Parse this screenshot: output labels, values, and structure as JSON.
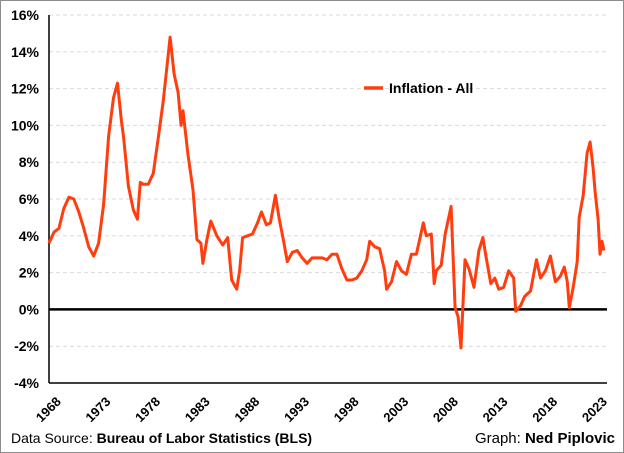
{
  "chart_data": {
    "type": "line",
    "title": "",
    "xlabel": "",
    "ylabel": "",
    "xlim": [
      1968,
      2024.2
    ],
    "ylim": [
      -4,
      16
    ],
    "yticks": [
      -4,
      -2,
      0,
      2,
      4,
      6,
      8,
      10,
      12,
      14,
      16
    ],
    "ytick_labels": [
      "-4%",
      "-2%",
      "0%",
      "2%",
      "4%",
      "6%",
      "8%",
      "10%",
      "12%",
      "14%",
      "16%"
    ],
    "xticks": [
      1968,
      1973,
      1978,
      1983,
      1988,
      1993,
      1998,
      2003,
      2008,
      2013,
      2018,
      2023
    ],
    "xtick_labels": [
      "1968",
      "1973",
      "1978",
      "1983",
      "1988",
      "1993",
      "1998",
      "2003",
      "2008",
      "2013",
      "2018",
      "2023"
    ],
    "grid": true,
    "legend": {
      "placement": "top-center",
      "entries": [
        "Inflation - All"
      ]
    },
    "series": [
      {
        "name": "Inflation - All",
        "color": "#ff3d0f",
        "x": [
          1968.0,
          1968.5,
          1969.0,
          1969.5,
          1970.0,
          1970.5,
          1971.0,
          1971.5,
          1972.0,
          1972.5,
          1973.0,
          1973.5,
          1974.0,
          1974.5,
          1974.9,
          1975.3,
          1975.5,
          1976.0,
          1976.5,
          1976.9,
          1977.2,
          1977.5,
          1978.0,
          1978.5,
          1979.0,
          1979.5,
          1980.2,
          1980.6,
          1981.0,
          1981.3,
          1981.5,
          1982.0,
          1982.5,
          1982.9,
          1983.3,
          1983.5,
          1983.9,
          1984.3,
          1984.9,
          1985.5,
          1986.0,
          1986.4,
          1986.9,
          1987.2,
          1987.5,
          1988.0,
          1988.5,
          1989.0,
          1989.4,
          1989.9,
          1990.3,
          1990.8,
          1991.2,
          1991.6,
          1992.0,
          1992.5,
          1993.0,
          1993.5,
          1994.0,
          1994.5,
          1995.0,
          1995.5,
          1996.0,
          1996.5,
          1997.0,
          1997.5,
          1998.0,
          1998.5,
          1999.0,
          1999.5,
          2000.0,
          2000.3,
          2000.8,
          2001.3,
          2001.8,
          2002.0,
          2002.5,
          2003.0,
          2003.5,
          2004.0,
          2004.5,
          2005.0,
          2005.7,
          2006.0,
          2006.5,
          2006.8,
          2007.0,
          2007.5,
          2007.9,
          2008.5,
          2008.9,
          2009.2,
          2009.5,
          2009.9,
          2010.3,
          2010.8,
          2011.3,
          2011.7,
          2012.0,
          2012.5,
          2012.9,
          2013.3,
          2013.8,
          2014.3,
          2014.8,
          2015.0,
          2015.5,
          2015.9,
          2016.5,
          2017.1,
          2017.5,
          2018.0,
          2018.5,
          2019.0,
          2019.5,
          2019.9,
          2020.2,
          2020.4,
          2020.8,
          2021.2,
          2021.4,
          2021.8,
          2022.2,
          2022.5,
          2022.8,
          2023.0,
          2023.3,
          2023.5,
          2023.7,
          2023.9
        ],
        "y": [
          3.6,
          4.2,
          4.4,
          5.5,
          6.1,
          6.0,
          5.3,
          4.4,
          3.4,
          2.9,
          3.6,
          5.7,
          9.4,
          11.5,
          12.3,
          10.2,
          9.4,
          6.7,
          5.4,
          4.9,
          6.9,
          6.8,
          6.8,
          7.4,
          9.3,
          11.3,
          14.8,
          12.8,
          11.8,
          10.0,
          10.8,
          8.4,
          6.5,
          3.8,
          3.6,
          2.5,
          3.8,
          4.8,
          4.0,
          3.5,
          3.9,
          1.6,
          1.1,
          2.1,
          3.9,
          4.0,
          4.1,
          4.7,
          5.3,
          4.6,
          4.7,
          6.2,
          4.9,
          3.8,
          2.6,
          3.1,
          3.2,
          2.8,
          2.5,
          2.8,
          2.8,
          2.8,
          2.7,
          3.0,
          3.0,
          2.2,
          1.6,
          1.6,
          1.7,
          2.1,
          2.7,
          3.7,
          3.4,
          3.3,
          2.1,
          1.1,
          1.5,
          2.6,
          2.1,
          1.9,
          3.0,
          3.0,
          4.7,
          4.0,
          4.1,
          1.4,
          2.1,
          2.4,
          4.1,
          5.6,
          0.1,
          -0.4,
          -2.1,
          2.7,
          2.2,
          1.2,
          3.2,
          3.9,
          2.9,
          1.4,
          1.7,
          1.1,
          1.2,
          2.1,
          1.7,
          -0.1,
          0.2,
          0.7,
          1.0,
          2.7,
          1.7,
          2.1,
          2.9,
          1.5,
          1.8,
          2.3,
          1.5,
          0.1,
          1.2,
          2.6,
          5.0,
          6.2,
          8.5,
          9.1,
          7.7,
          6.4,
          4.9,
          3.0,
          3.7,
          3.2
        ]
      }
    ]
  },
  "footer": {
    "source_prefix": "Data Source: ",
    "source_name": "Bureau of Labor Statistics (BLS)",
    "credit_prefix": "Graph: ",
    "credit_name": "Ned Piplovic"
  }
}
